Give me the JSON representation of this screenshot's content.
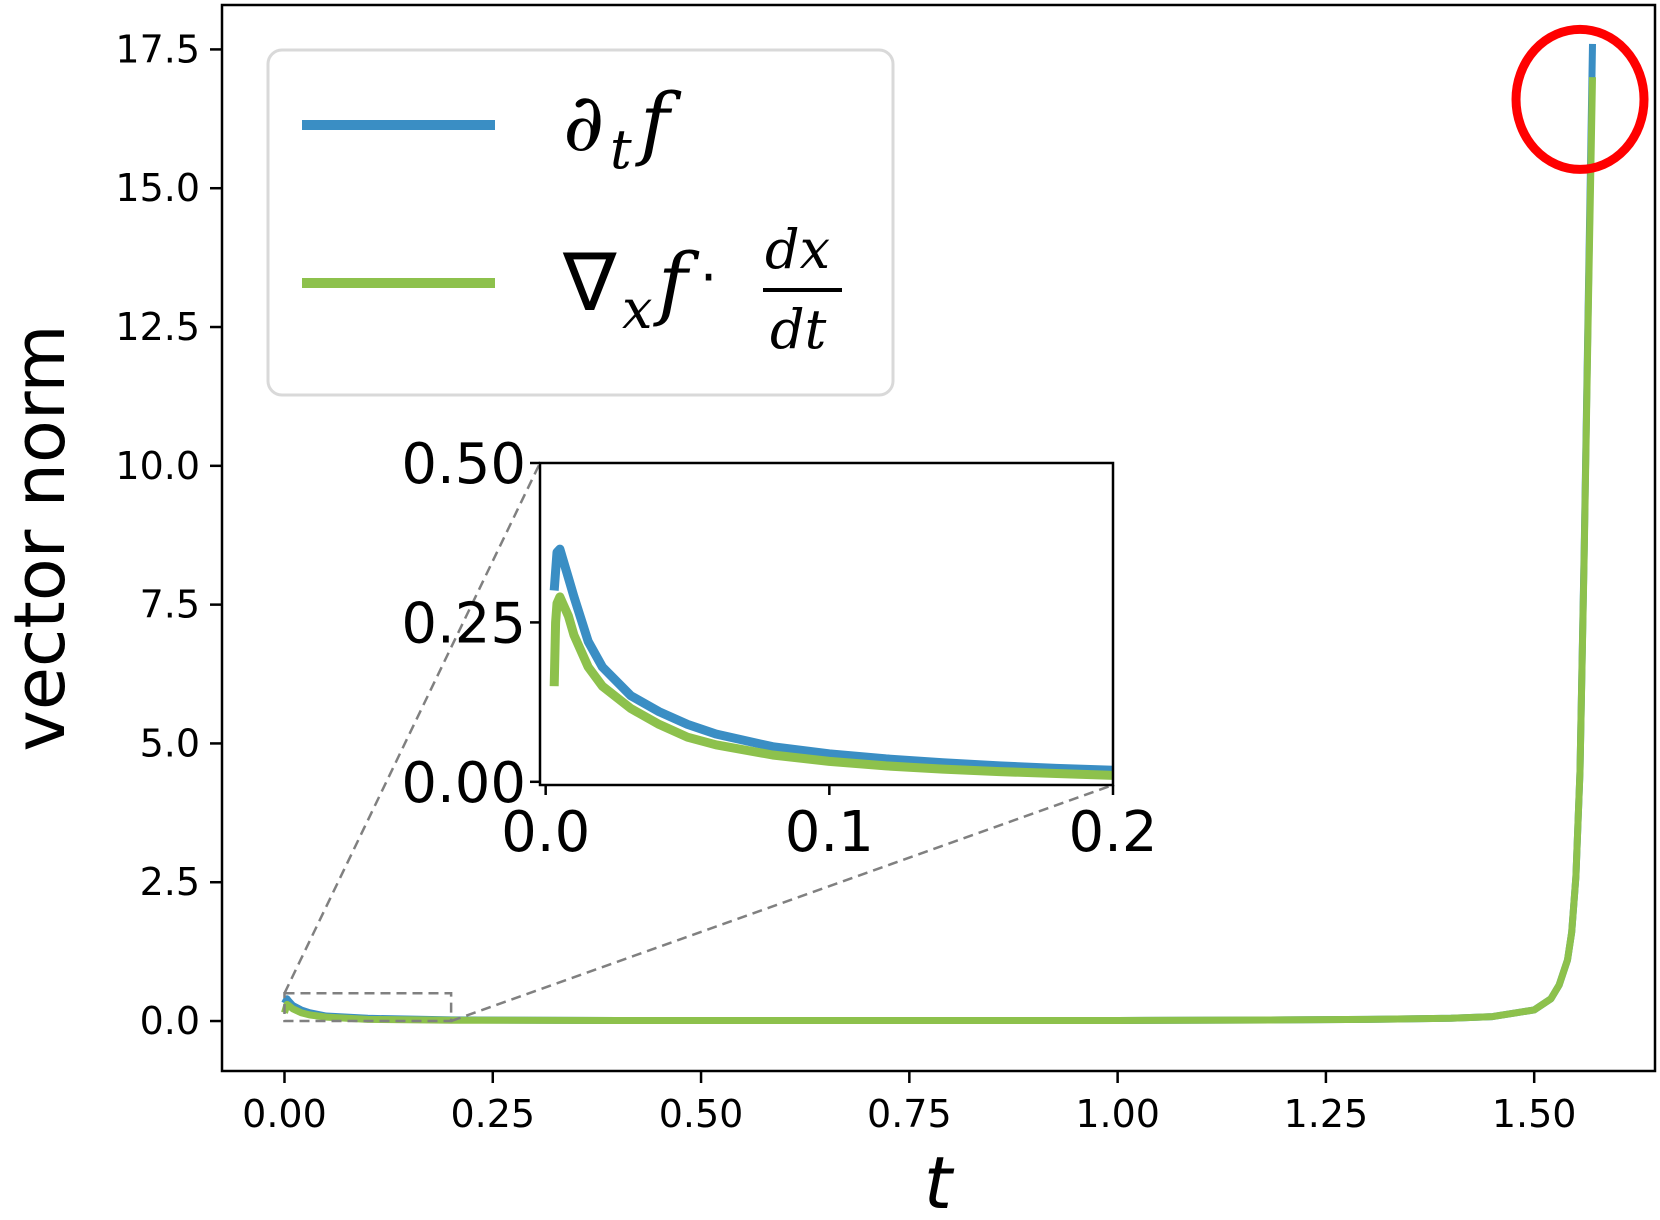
{
  "chart_data": {
    "type": "line",
    "xlabel": "t",
    "ylabel": "vector norm",
    "xlim": [
      -0.075,
      1.645
    ],
    "ylim": [
      -0.9,
      18.3
    ],
    "xticks": [
      "0.00",
      "0.25",
      "0.50",
      "0.75",
      "1.00",
      "1.25",
      "1.50"
    ],
    "xtick_values": [
      0,
      0.25,
      0.5,
      0.75,
      1.0,
      1.25,
      1.5
    ],
    "yticks": [
      "0.0",
      "2.5",
      "5.0",
      "7.5",
      "10.0",
      "12.5",
      "15.0",
      "17.5"
    ],
    "ytick_values": [
      0,
      2.5,
      5.0,
      7.5,
      10.0,
      12.5,
      15.0,
      17.5
    ],
    "legend_position": "upper-left",
    "series": [
      {
        "name": "∂tf",
        "color": "#3a8ec4",
        "x": [
          0.0,
          0.003,
          0.005,
          0.01,
          0.02,
          0.03,
          0.05,
          0.1,
          0.2,
          0.4,
          0.6,
          0.8,
          1.0,
          1.2,
          1.3,
          1.4,
          1.45,
          1.5,
          1.52,
          1.53,
          1.54,
          1.545,
          1.55,
          1.555,
          1.56,
          1.565,
          1.57
        ],
        "y": [
          0.32,
          0.4,
          0.36,
          0.28,
          0.2,
          0.15,
          0.09,
          0.05,
          0.02,
          0.01,
          0.01,
          0.01,
          0.01,
          0.02,
          0.03,
          0.05,
          0.08,
          0.2,
          0.4,
          0.65,
          1.1,
          1.6,
          2.6,
          4.5,
          8.5,
          13.0,
          17.6
        ]
      },
      {
        "name": "∇xf · dx/dt",
        "color": "#8dc14c",
        "x": [
          0.0,
          0.003,
          0.005,
          0.01,
          0.02,
          0.03,
          0.05,
          0.1,
          0.2,
          0.4,
          0.6,
          0.8,
          1.0,
          1.2,
          1.3,
          1.4,
          1.45,
          1.5,
          1.52,
          1.53,
          1.54,
          1.545,
          1.55,
          1.555,
          1.56,
          1.565,
          1.57
        ],
        "y": [
          0.15,
          0.3,
          0.28,
          0.22,
          0.15,
          0.11,
          0.07,
          0.03,
          0.015,
          0.01,
          0.01,
          0.01,
          0.01,
          0.02,
          0.03,
          0.05,
          0.08,
          0.2,
          0.4,
          0.65,
          1.1,
          1.6,
          2.6,
          4.5,
          8.4,
          12.8,
          17.0
        ]
      }
    ],
    "inset": {
      "xlim": [
        -0.002,
        0.2
      ],
      "ylim": [
        -0.005,
        0.5
      ],
      "xticks": [
        "0.0",
        "0.1",
        "0.2"
      ],
      "xtick_values": [
        0,
        0.1,
        0.2
      ],
      "yticks": [
        "0.00",
        "0.25",
        "0.50"
      ],
      "ytick_values": [
        0,
        0.25,
        0.5
      ],
      "zoom_box": {
        "x": [
          0,
          0.2
        ],
        "y": [
          0,
          0.5
        ]
      },
      "series": [
        {
          "color": "#3a8ec4",
          "x": [
            0.003,
            0.004,
            0.005,
            0.006,
            0.008,
            0.01,
            0.015,
            0.02,
            0.03,
            0.04,
            0.05,
            0.06,
            0.08,
            0.1,
            0.12,
            0.14,
            0.16,
            0.18,
            0.2
          ],
          "y": [
            0.3,
            0.36,
            0.365,
            0.35,
            0.32,
            0.29,
            0.22,
            0.18,
            0.135,
            0.11,
            0.09,
            0.075,
            0.055,
            0.044,
            0.036,
            0.03,
            0.025,
            0.021,
            0.018
          ]
        },
        {
          "color": "#8dc14c",
          "x": [
            0.003,
            0.0035,
            0.004,
            0.005,
            0.006,
            0.008,
            0.01,
            0.015,
            0.02,
            0.03,
            0.04,
            0.05,
            0.06,
            0.08,
            0.1,
            0.12,
            0.14,
            0.16,
            0.18,
            0.2
          ],
          "y": [
            0.15,
            0.25,
            0.28,
            0.29,
            0.28,
            0.26,
            0.23,
            0.18,
            0.15,
            0.115,
            0.09,
            0.07,
            0.058,
            0.042,
            0.032,
            0.025,
            0.02,
            0.016,
            0.013,
            0.01
          ]
        }
      ]
    },
    "annotation": {
      "type": "circle",
      "color": "#ff0000",
      "x": 1.555,
      "y": 16.6
    }
  }
}
